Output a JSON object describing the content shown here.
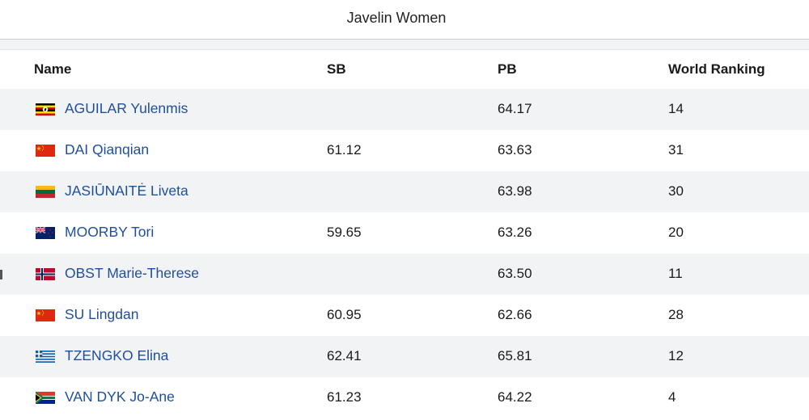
{
  "page": {
    "title": "Javelin Women"
  },
  "table": {
    "headers": {
      "name": "Name",
      "sb": "SB",
      "pb": "PB",
      "ranking": "World Ranking"
    },
    "rows": [
      {
        "name": "AGUILAR Yulenmis",
        "sb": "",
        "pb": "64.17",
        "ranking": "14",
        "flag": "uganda-flag-icon"
      },
      {
        "name": "DAI Qianqian",
        "sb": "61.12",
        "pb": "63.63",
        "ranking": "31",
        "flag": "china-flag-icon"
      },
      {
        "name": "JASIŪNAITĖ Liveta",
        "sb": "",
        "pb": "63.98",
        "ranking": "30",
        "flag": "lithuania-flag-icon"
      },
      {
        "name": "MOORBY Tori",
        "sb": "59.65",
        "pb": "63.26",
        "ranking": "20",
        "flag": "new-zealand-flag-icon"
      },
      {
        "name": "OBST Marie-Therese",
        "sb": "",
        "pb": "63.50",
        "ranking": "11",
        "flag": "norway-flag-icon"
      },
      {
        "name": "SU Lingdan",
        "sb": "60.95",
        "pb": "62.66",
        "ranking": "28",
        "flag": "china-flag-icon"
      },
      {
        "name": "TZENGKO Elina",
        "sb": "62.41",
        "pb": "65.81",
        "ranking": "12",
        "flag": "greece-flag-icon"
      },
      {
        "name": "VAN DYK Jo-Ane",
        "sb": "61.23",
        "pb": "64.22",
        "ranking": "4",
        "flag": "south-africa-flag-icon"
      }
    ]
  },
  "colors": {
    "link": "#1f4f9c",
    "row_alt": "#f2f3f5",
    "border": "#c9ccd3"
  }
}
